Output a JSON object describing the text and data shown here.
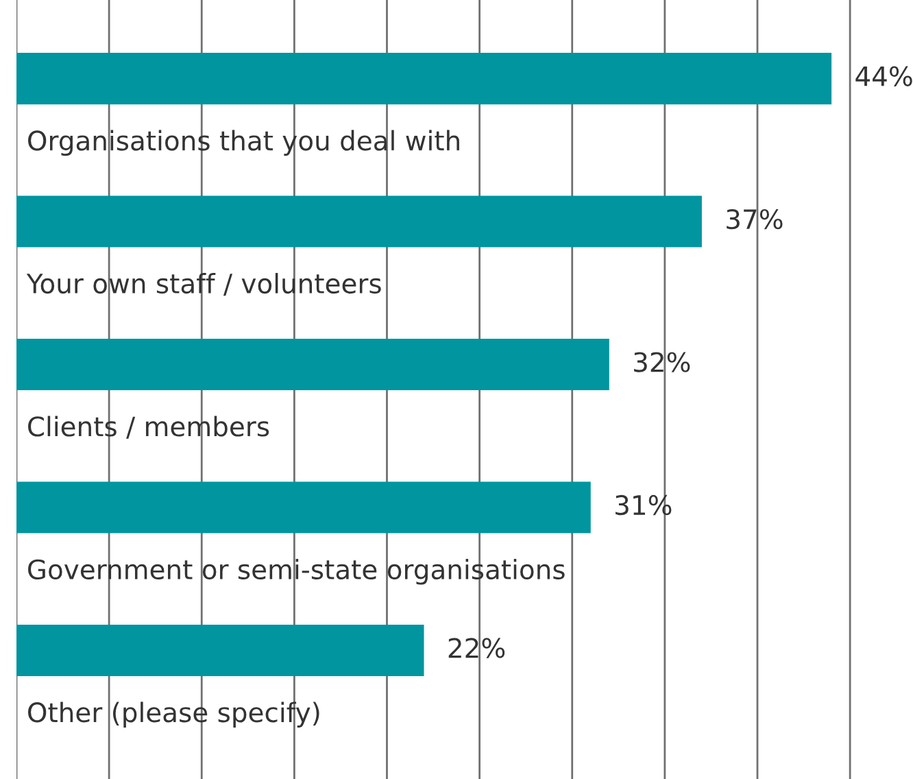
{
  "chart_data": {
    "type": "bar",
    "orientation": "horizontal",
    "categories": [
      "Organisations that you deal with",
      "Your own staff / volunteers",
      "Clients / members",
      "Government or semi-state organisations",
      "Other (please specify)"
    ],
    "values": [
      44,
      37,
      32,
      31,
      22
    ],
    "color": "#00959f",
    "value_labels": [
      "44%",
      "37%",
      "32%",
      "31%",
      "22%"
    ],
    "xticks": [
      {
        "value": 0,
        "label": null
      },
      {
        "value": 5,
        "label": null
      },
      {
        "value": 10,
        "label": null
      },
      {
        "value": 15,
        "label": null
      },
      {
        "value": 20,
        "label": null
      },
      {
        "value": 25,
        "label": null
      },
      {
        "value": 30,
        "label": null
      },
      {
        "value": 35,
        "label": null
      },
      {
        "value": 40,
        "label": null
      },
      {
        "value": 45,
        "label": null
      }
    ],
    "grid": "x"
  }
}
